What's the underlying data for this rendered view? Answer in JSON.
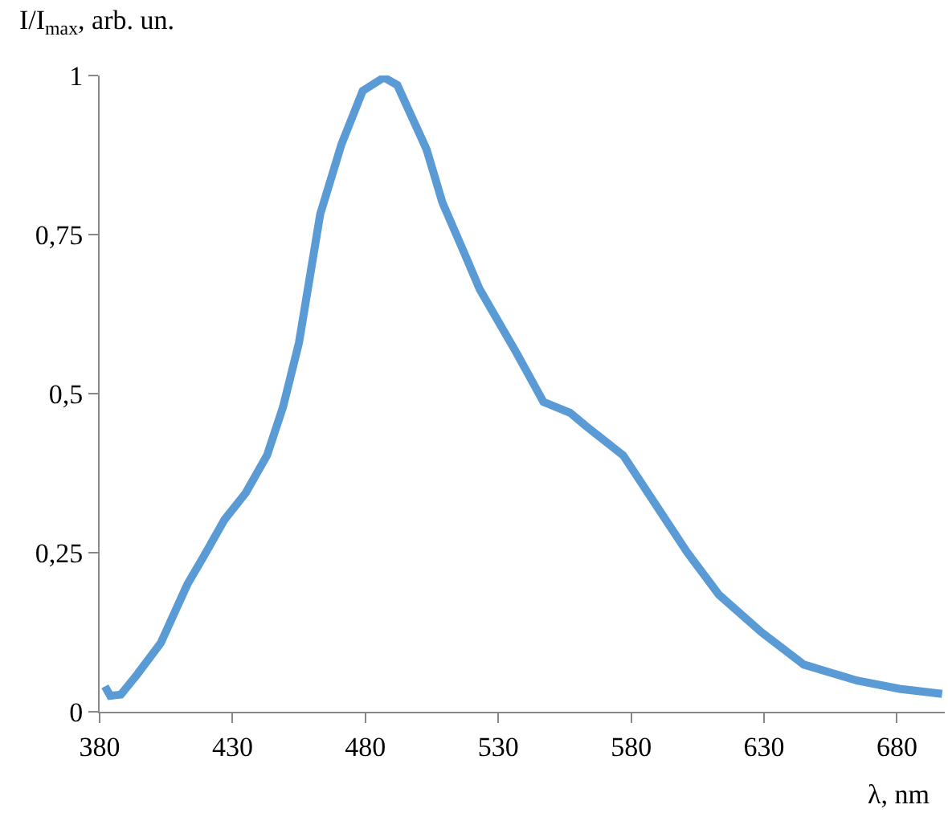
{
  "chart_data": {
    "type": "line",
    "xlabel": "λ, nm",
    "ylabel": "I/I$_{max}$, arb. un.",
    "x": [
      382,
      384,
      388,
      394,
      403,
      413,
      419,
      427,
      435,
      443,
      449,
      455,
      463,
      471,
      479,
      487,
      492,
      503,
      509,
      517,
      523,
      537,
      547,
      557,
      563,
      577,
      589,
      601,
      613,
      629,
      645,
      665,
      681,
      697
    ],
    "series": [
      {
        "color": "#5b9bd5",
        "values": [
          0.04,
          0.025,
          0.027,
          0.058,
          0.108,
          0.2,
          0.243,
          0.302,
          0.344,
          0.403,
          0.479,
          0.58,
          0.782,
          0.892,
          0.976,
          0.997,
          0.985,
          0.884,
          0.8,
          0.723,
          0.664,
          0.563,
          0.487,
          0.47,
          0.449,
          0.403,
          0.327,
          0.251,
          0.184,
          0.125,
          0.074,
          0.049,
          0.036,
          0.028
        ]
      }
    ],
    "xlim": [
      380,
      698
    ],
    "xticks": [
      380,
      430,
      480,
      530,
      580,
      630,
      680
    ],
    "ylim": [
      0,
      1
    ],
    "yticks": [
      0,
      {
        "value": 0.25,
        "label": "0,25"
      },
      {
        "value": 0.5,
        "label": "0,5"
      },
      {
        "value": 0.75,
        "label": "0,75"
      },
      1
    ],
    "grid": false,
    "marker": "none",
    "line_style": "solid"
  }
}
